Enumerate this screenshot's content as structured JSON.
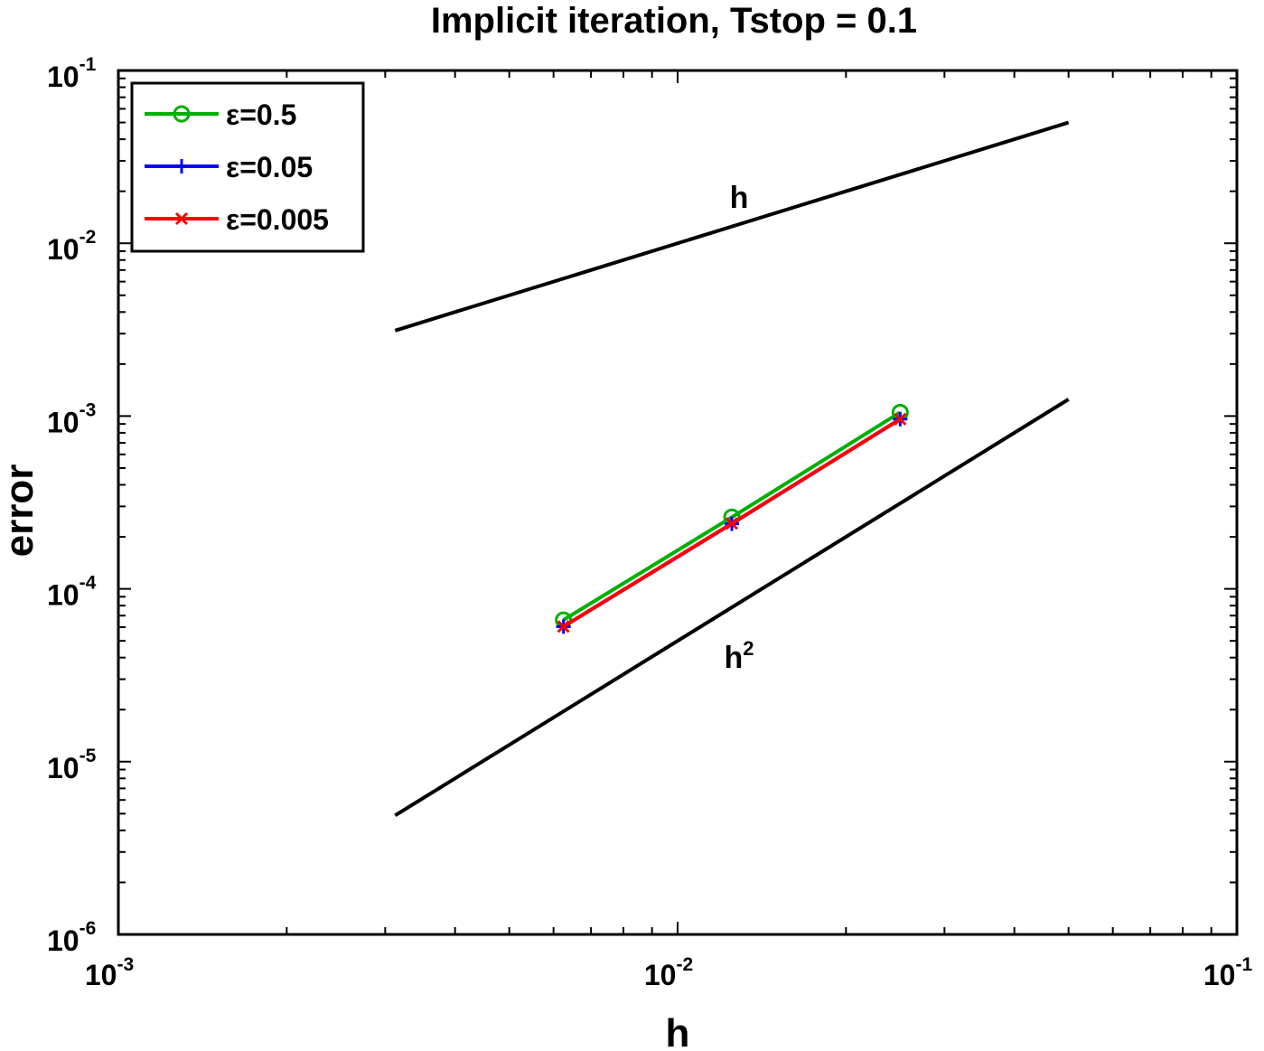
{
  "chart_data": {
    "type": "line",
    "title": "Implicit iteration, Tstop = 0.1",
    "xlabel": "h",
    "ylabel": "error",
    "xscale": "log",
    "yscale": "log",
    "xlim": [
      0.001,
      0.1
    ],
    "ylim": [
      1e-06,
      0.1
    ],
    "grid": false,
    "legend_position": "top-left",
    "x_ticks": [
      {
        "value": 0.001,
        "base": "10",
        "exp": "-3"
      },
      {
        "value": 0.01,
        "base": "10",
        "exp": "-2"
      },
      {
        "value": 0.1,
        "base": "10",
        "exp": "-1"
      }
    ],
    "y_ticks": [
      {
        "value": 1e-06,
        "base": "10",
        "exp": "-6"
      },
      {
        "value": 1e-05,
        "base": "10",
        "exp": "-5"
      },
      {
        "value": 0.0001,
        "base": "10",
        "exp": "-4"
      },
      {
        "value": 0.001,
        "base": "10",
        "exp": "-3"
      },
      {
        "value": 0.01,
        "base": "10",
        "exp": "-2"
      },
      {
        "value": 0.1,
        "base": "10",
        "exp": "-1"
      }
    ],
    "series": [
      {
        "name": "ε=0.5",
        "color": "#00b000",
        "marker": "circle",
        "x": [
          0.00625,
          0.0125,
          0.025
        ],
        "y": [
          6.6e-05,
          0.00026,
          0.00105
        ]
      },
      {
        "name": "ε=0.05",
        "color": "#0000ff",
        "marker": "plus",
        "x": [
          0.00625,
          0.0125,
          0.025
        ],
        "y": [
          6.05e-05,
          0.000238,
          0.00096
        ]
      },
      {
        "name": "ε=0.005",
        "color": "#ff0000",
        "marker": "x",
        "x": [
          0.00625,
          0.0125,
          0.025
        ],
        "y": [
          6.05e-05,
          0.000239,
          0.00096
        ]
      }
    ],
    "reference_lines": [
      {
        "label": "h",
        "x": [
          0.003125,
          0.05
        ],
        "y": [
          0.003125,
          0.05
        ],
        "label_x": 0.0125,
        "label_y": 0.016
      },
      {
        "label_base": "h",
        "label_exp": "2",
        "x": [
          0.003125,
          0.05
        ],
        "y": [
          4.8828e-06,
          0.00125
        ],
        "label_x": 0.0125,
        "label_y": 3.5e-05
      }
    ]
  }
}
